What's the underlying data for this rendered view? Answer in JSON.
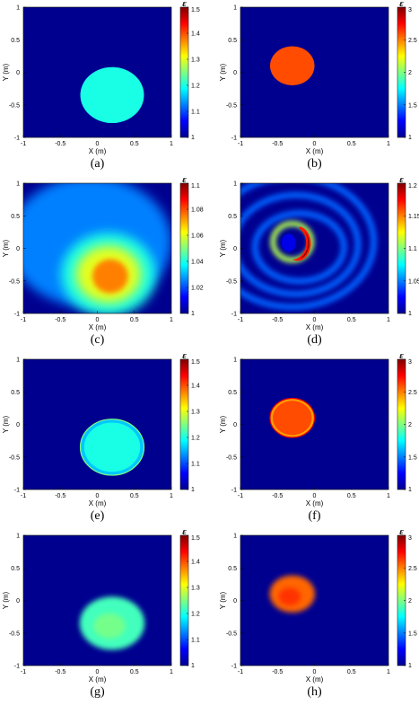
{
  "chart_data": [
    {
      "id": "a",
      "type": "heatmap",
      "caption": "(a)",
      "xlabel": "X (m)",
      "ylabel": "Y (m)",
      "xlim": [
        -1,
        1
      ],
      "ylim": [
        -1,
        1
      ],
      "xticks": [
        "-1",
        "-0.5",
        "0",
        "0.5",
        "1"
      ],
      "yticks": [
        "-1",
        "-0.5",
        "0",
        "0.5",
        "1"
      ],
      "colorbar": {
        "label": "ε",
        "min": 1,
        "max": 1.5,
        "ticks": [
          "1.5",
          "1.4",
          "1.3",
          "1.2",
          "1.1",
          "1"
        ],
        "tick_values": [
          1.5,
          1.4,
          1.3,
          1.2,
          1.1,
          1
        ]
      },
      "background": 1.0,
      "objects": [
        {
          "shape": "circle",
          "cx": 0.2,
          "cy": -0.35,
          "r": 0.43,
          "value": 1.2
        }
      ]
    },
    {
      "id": "b",
      "type": "heatmap",
      "caption": "(b)",
      "xlabel": "X (m)",
      "ylabel": "Y (m)",
      "xlim": [
        -1,
        1
      ],
      "ylim": [
        -1,
        1
      ],
      "xticks": [
        "-1",
        "-0.5",
        "0",
        "0.5",
        "1"
      ],
      "yticks": [
        "-1",
        "-0.5",
        "0",
        "0.5",
        "1"
      ],
      "colorbar": {
        "label": "ε",
        "min": 1,
        "max": 3,
        "ticks": [
          "3",
          "2.5",
          "2",
          "1.5",
          "1"
        ],
        "tick_values": [
          3,
          2.5,
          2,
          1.5,
          1
        ]
      },
      "background": 1.0,
      "objects": [
        {
          "shape": "circle",
          "cx": -0.3,
          "cy": 0.1,
          "r": 0.3,
          "value": 2.6
        }
      ]
    },
    {
      "id": "c",
      "type": "heatmap",
      "caption": "(c)",
      "xlabel": "X (m)",
      "ylabel": "Y (m)",
      "xlim": [
        -1,
        1
      ],
      "ylim": [
        -1,
        1
      ],
      "xticks": [
        "-1",
        "-0.5",
        "0",
        "0.5",
        "1"
      ],
      "yticks": [
        "-1",
        "-0.5",
        "0",
        "0.5",
        "1"
      ],
      "colorbar": {
        "label": "ε",
        "min": 1,
        "max": 1.1,
        "ticks": [
          "1.1",
          "1.08",
          "1.06",
          "1.04",
          "1.02",
          "1"
        ],
        "tick_values": [
          1.1,
          1.08,
          1.06,
          1.04,
          1.02,
          1
        ]
      },
      "background": 1.0,
      "reconstruction": "smooth-blob",
      "peak_value": 1.075,
      "peak_center": [
        0.15,
        -0.4
      ]
    },
    {
      "id": "d",
      "type": "heatmap",
      "caption": "(d)",
      "xlabel": "X (m)",
      "ylabel": "Y (m)",
      "xlim": [
        -1,
        1
      ],
      "ylim": [
        -1,
        1
      ],
      "xticks": [
        "-1",
        "-0.5",
        "0",
        "0.5",
        "1"
      ],
      "yticks": [
        "-1",
        "-0.5",
        "0",
        "0.5",
        "1"
      ],
      "colorbar": {
        "label": "ε",
        "min": 1,
        "max": 1.2,
        "ticks": [
          "1.2",
          "1.15",
          "1.1",
          "1.05",
          "1"
        ],
        "tick_values": [
          1.2,
          1.15,
          1.1,
          1.05,
          1
        ]
      },
      "background": 1.0,
      "reconstruction": "ring-crescent",
      "peak_value": 1.2,
      "ring_center": [
        -0.3,
        0.1
      ]
    },
    {
      "id": "e",
      "type": "heatmap",
      "caption": "(e)",
      "xlabel": "X (m)",
      "ylabel": "Y (m)",
      "xlim": [
        -1,
        1
      ],
      "ylim": [
        -1,
        1
      ],
      "xticks": [
        "-1",
        "-0.5",
        "0",
        "0.5",
        "1"
      ],
      "yticks": [
        "-1",
        "-0.5",
        "0",
        "0.5",
        "1"
      ],
      "colorbar": {
        "label": "ε",
        "min": 1,
        "max": 1.5,
        "ticks": [
          "1.5",
          "1.4",
          "1.3",
          "1.2",
          "1.1",
          "1"
        ],
        "tick_values": [
          1.5,
          1.4,
          1.3,
          1.2,
          1.1,
          1
        ]
      },
      "background": 1.0,
      "objects": [
        {
          "shape": "circle",
          "cx": 0.2,
          "cy": -0.35,
          "r": 0.43,
          "value": 1.2
        }
      ]
    },
    {
      "id": "f",
      "type": "heatmap",
      "caption": "(f)",
      "xlabel": "X (m)",
      "ylabel": "Y (m)",
      "xlim": [
        -1,
        1
      ],
      "ylim": [
        -1,
        1
      ],
      "xticks": [
        "-1",
        "-0.5",
        "0",
        "0.5",
        "1"
      ],
      "yticks": [
        "-1",
        "-0.5",
        "0",
        "0.5",
        "1"
      ],
      "colorbar": {
        "label": "ε",
        "min": 1,
        "max": 3,
        "ticks": [
          "3",
          "2.5",
          "2",
          "1.5",
          "1"
        ],
        "tick_values": [
          3,
          2.5,
          2,
          1.5,
          1
        ]
      },
      "background": 1.0,
      "objects": [
        {
          "shape": "circle",
          "cx": -0.3,
          "cy": 0.1,
          "r": 0.3,
          "value": 2.6
        }
      ]
    },
    {
      "id": "g",
      "type": "heatmap",
      "caption": "(g)",
      "xlabel": "X (m)",
      "ylabel": "Y (m)",
      "xlim": [
        -1,
        1
      ],
      "ylim": [
        -1,
        1
      ],
      "xticks": [
        "-1",
        "-0.5",
        "0",
        "0.5",
        "1"
      ],
      "yticks": [
        "-1",
        "-0.5",
        "0",
        "0.5",
        "1"
      ],
      "colorbar": {
        "label": "ε",
        "min": 1,
        "max": 1.5,
        "ticks": [
          "1.5",
          "1.4",
          "1.3",
          "1.2",
          "1.1",
          "1"
        ],
        "tick_values": [
          1.5,
          1.4,
          1.3,
          1.2,
          1.1,
          1
        ]
      },
      "background": 1.0,
      "objects": [
        {
          "shape": "circle",
          "cx": 0.2,
          "cy": -0.35,
          "r": 0.43,
          "value": 1.22
        }
      ]
    },
    {
      "id": "h",
      "type": "heatmap",
      "caption": "(h)",
      "xlabel": "X (m)",
      "ylabel": "Y (m)",
      "xlim": [
        -1,
        1
      ],
      "ylim": [
        -1,
        1
      ],
      "xticks": [
        "-1",
        "-0.5",
        "0",
        "0.5",
        "1"
      ],
      "yticks": [
        "-1",
        "-0.5",
        "0",
        "0.5",
        "1"
      ],
      "colorbar": {
        "label": "ε",
        "min": 1,
        "max": 3,
        "ticks": [
          "3",
          "2.5",
          "2",
          "1.5",
          "1"
        ],
        "tick_values": [
          3,
          2.5,
          2,
          1.5,
          1
        ]
      },
      "background": 1.0,
      "objects": [
        {
          "shape": "circle",
          "cx": -0.3,
          "cy": 0.1,
          "r": 0.3,
          "value": 2.55
        }
      ]
    }
  ]
}
